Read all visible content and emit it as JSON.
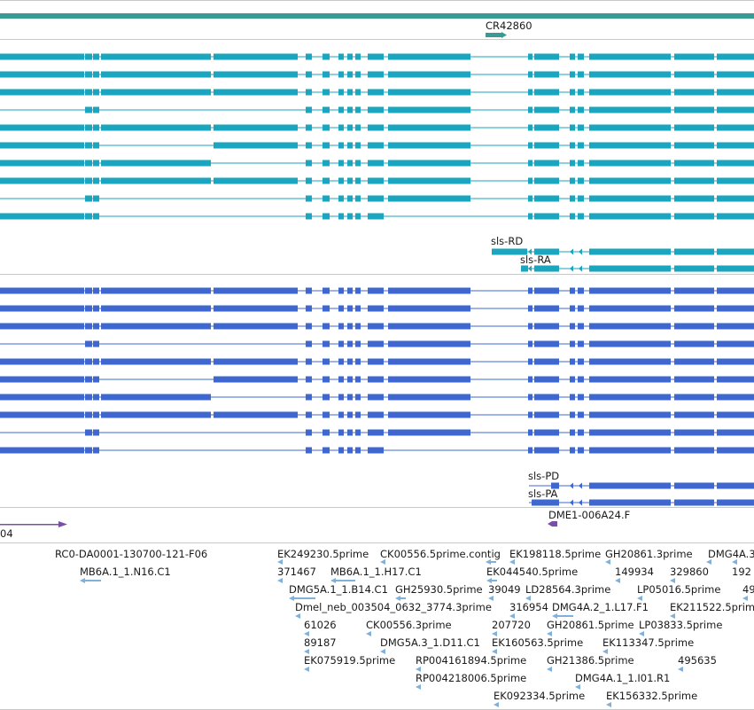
{
  "colors": {
    "contig_track": "#3a9a94",
    "rna_track": "#1aa6be",
    "protein_track": "#3e68d0",
    "other_feature": "#7a4ea6",
    "est_feature": "#7fb1da",
    "divider": "#c8c8c8"
  },
  "gene_labels": {
    "cr42860": "CR42860",
    "sls_rd": "sls-RD",
    "sls_ra": "sls-RA",
    "sls_pd": "sls-PD",
    "sls_pa": "sls-PA",
    "dme1": "DME1-006A24.F",
    "left_partial": "04"
  },
  "est_labels": {
    "r1": [
      "RC0-DA0001-130700-121-F06",
      "EK249230.5prime",
      "CK00556.5prime.contig",
      "EK198118.5prime",
      "GH20861.3prime",
      "DMG4A.3"
    ],
    "r2": [
      "MB6A.1_1.N16.C1",
      "371467",
      "MB6A.1_1.H17.C1",
      "EK044540.5prime",
      "149934",
      "329860",
      "192"
    ],
    "r3": [
      "DMG5A.1_1.B14.C1",
      "GH25930.5prime",
      "39049",
      "LD28564.3prime",
      "LP05016.5prime",
      "49"
    ],
    "r4": [
      "Dmel_neb_003504_0632_3774.3prime",
      "316954",
      "DMG4A.2_1.L17.F1",
      "EK211522.5prime"
    ],
    "r5": [
      "61026",
      "CK00556.3prime",
      "207720",
      "GH20861.5prime",
      "LP03833.5prime"
    ],
    "r6": [
      "89187",
      "DMG5A.3_1.D11.C1",
      "EK160563.5prime",
      "EK113347.5prime"
    ],
    "r7": [
      "EK075919.5prime",
      "RP004161894.5prime",
      "GH21386.5prime",
      "495635"
    ],
    "r8": [
      "RP004218006.5prime",
      "DMG4A.1_1.I01.R1"
    ],
    "r9": [
      "EK092334.5prime",
      "EK156332.5prime"
    ]
  }
}
